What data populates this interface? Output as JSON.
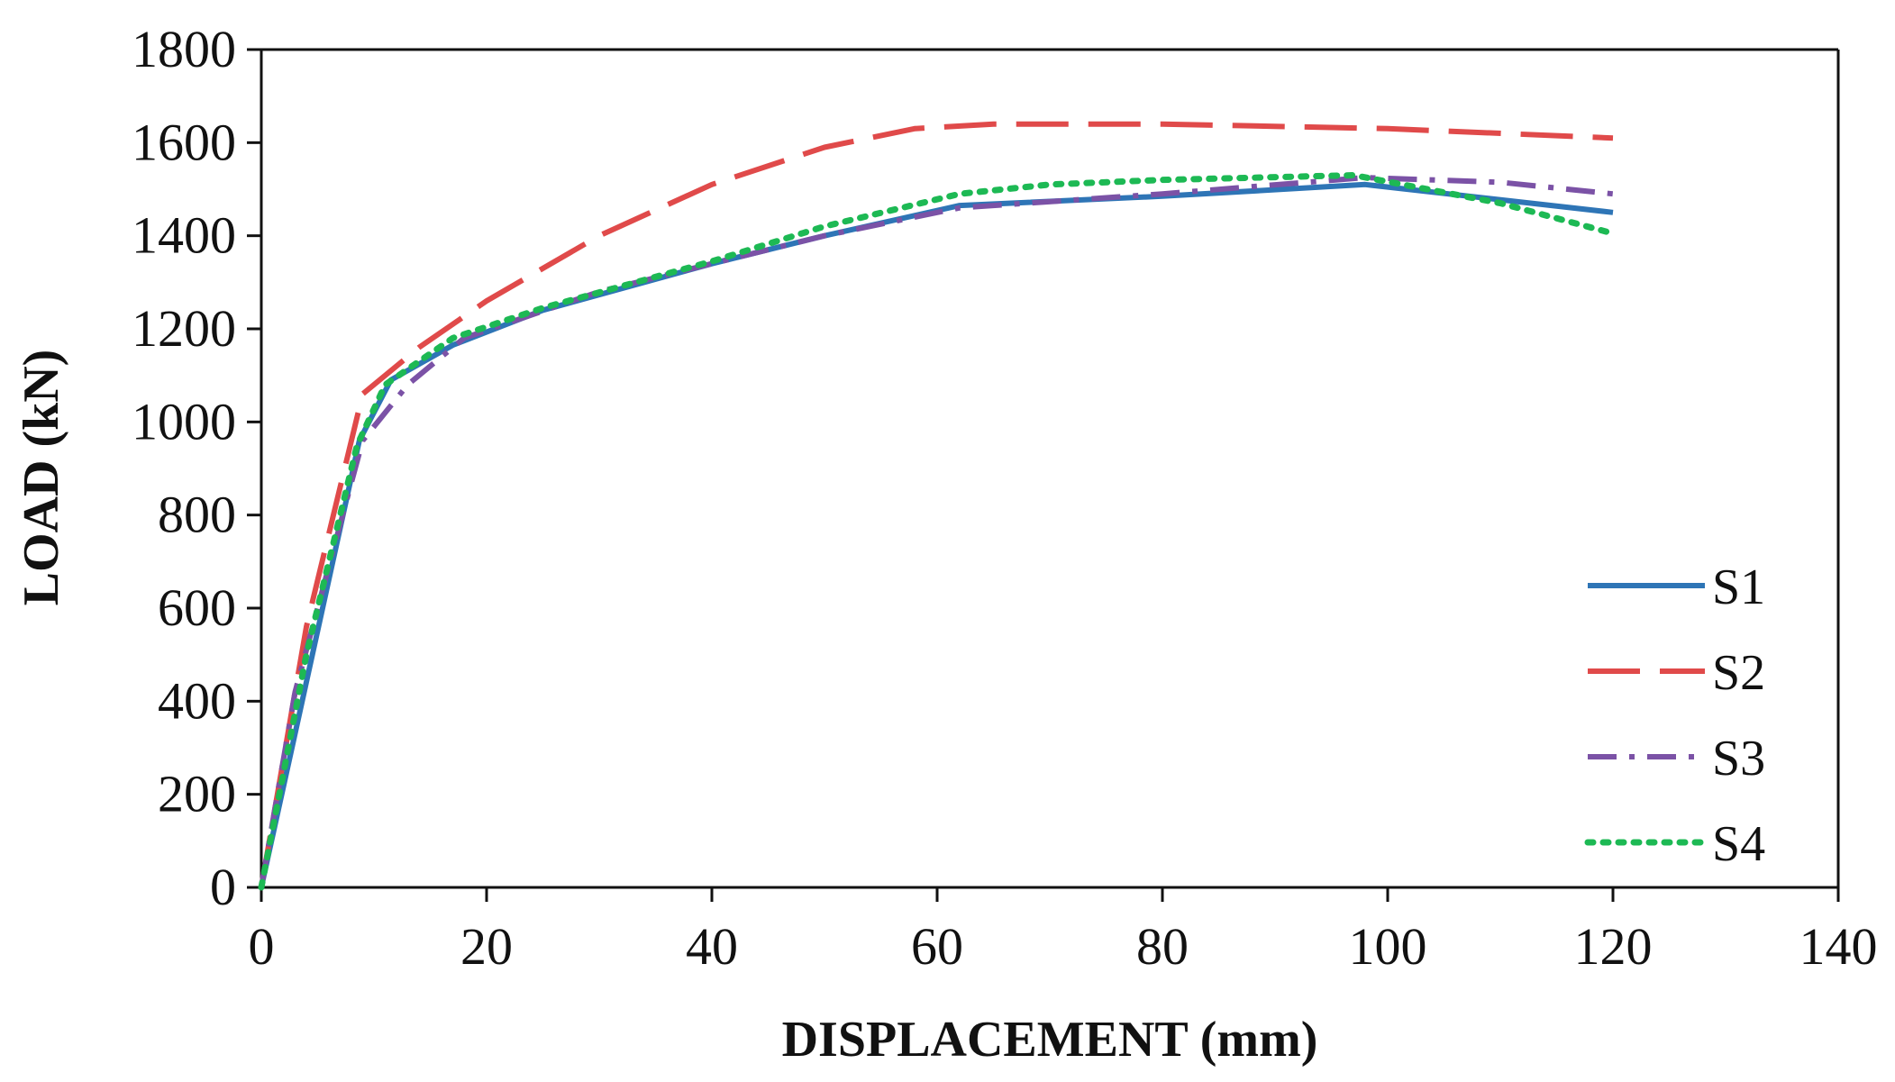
{
  "chart_data": {
    "type": "line",
    "title": "",
    "xlabel": "DISPLACEMENT  (mm)",
    "ylabel": "LOAD (kN)",
    "xlim": [
      0,
      140
    ],
    "ylim": [
      0,
      1800
    ],
    "xticks": [
      0,
      20,
      40,
      60,
      80,
      100,
      120,
      140
    ],
    "yticks": [
      0,
      200,
      400,
      600,
      800,
      1000,
      1200,
      1400,
      1600,
      1800
    ],
    "grid": false,
    "legend": "bottom-right",
    "series": [
      {
        "name": "S1",
        "color": "#2e75b6",
        "style": "solid",
        "x": [
          0,
          8.7,
          11.5,
          17,
          25,
          40,
          50,
          62,
          80,
          98,
          120
        ],
        "y": [
          0,
          960,
          1090,
          1165,
          1240,
          1340,
          1400,
          1465,
          1485,
          1510,
          1450
        ]
      },
      {
        "name": "S2",
        "color": "#e04a4a",
        "style": "dashed",
        "x": [
          0,
          4,
          9,
          14,
          20,
          30,
          40,
          50,
          58,
          65,
          80,
          100,
          120
        ],
        "y": [
          0,
          560,
          1060,
          1160,
          1260,
          1400,
          1510,
          1590,
          1630,
          1640,
          1640,
          1630,
          1610
        ]
      },
      {
        "name": "S3",
        "color": "#7b52a6",
        "style": "dash-dot",
        "x": [
          0,
          3,
          9,
          13,
          18,
          30,
          40,
          50,
          62,
          80,
          98,
          110,
          120
        ],
        "y": [
          0,
          420,
          960,
          1080,
          1180,
          1280,
          1340,
          1400,
          1460,
          1490,
          1525,
          1515,
          1490
        ]
      },
      {
        "name": "S4",
        "color": "#1db954",
        "style": "dotted",
        "x": [
          0,
          4,
          8.5,
          11,
          17,
          25,
          40,
          50,
          62,
          70,
          80,
          97,
          110,
          120
        ],
        "y": [
          0,
          500,
          950,
          1080,
          1180,
          1245,
          1345,
          1420,
          1490,
          1510,
          1520,
          1530,
          1470,
          1405
        ]
      }
    ]
  }
}
